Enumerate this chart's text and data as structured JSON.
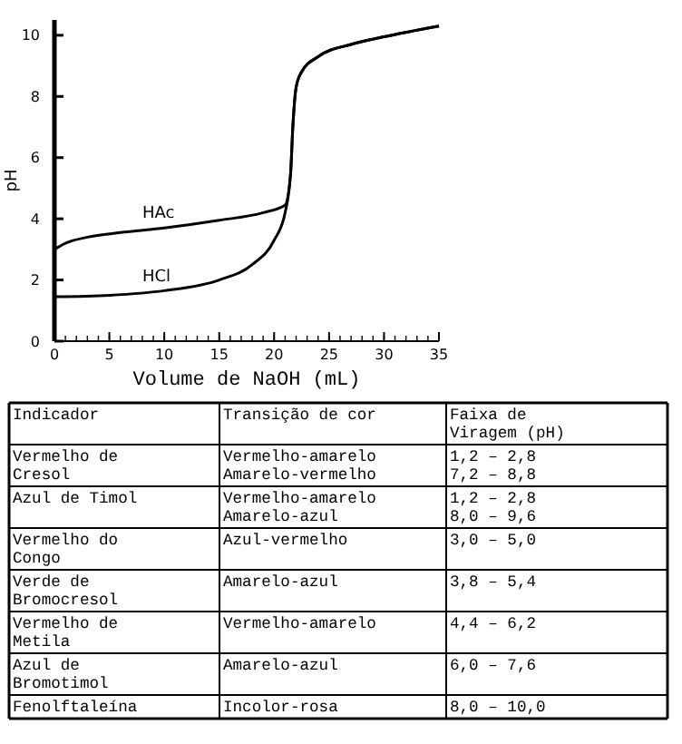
{
  "chart_data": [
    {
      "type": "line",
      "xlabel": "Volume de NaOH (mL)",
      "ylabel": "pH",
      "xlim": [
        0,
        35
      ],
      "ylim": [
        0,
        10.5
      ],
      "xticks": [
        0,
        5,
        10,
        15,
        20,
        25,
        30,
        35
      ],
      "yticks": [
        0,
        2,
        4,
        6,
        8,
        10
      ],
      "marker": "none",
      "line_style": "solid",
      "grid": false,
      "series": [
        {
          "name": "HAc",
          "color": "#000000",
          "x": [
            0,
            1,
            3,
            6,
            10,
            15,
            19,
            21,
            21.5,
            21.7,
            22,
            22.5,
            24,
            27,
            30,
            35
          ],
          "values": [
            3.0,
            3.2,
            3.4,
            3.55,
            3.7,
            3.95,
            4.2,
            4.45,
            5.5,
            7,
            8.3,
            8.8,
            9.3,
            9.7,
            9.95,
            10.3
          ]
        },
        {
          "name": "HCl",
          "color": "#000000",
          "x": [
            0,
            5,
            10,
            15,
            18,
            20,
            21,
            21.5,
            21.7,
            22,
            22.5,
            24,
            27,
            30,
            35
          ],
          "values": [
            1.45,
            1.5,
            1.65,
            2.0,
            2.5,
            3.3,
            4.2,
            5.5,
            7,
            8.3,
            8.8,
            9.3,
            9.7,
            9.95,
            10.3
          ]
        }
      ]
    },
    {
      "type": "other",
      "annotations": [
        "Indicador",
        "Transição de cor",
        "Faixa de\nViragem (pH)",
        "Vermelho de\nCresol",
        "Vermelho-amarelo\nAmarelo-vermelho",
        "1,2 – 2,8\n7,2 – 8,8",
        "Azul de Timol",
        "Vermelho-amarelo\nAmarelo-azul",
        "1,2 – 2,8\n8,0 – 9,6",
        "Vermelho do\nCongo",
        "Azul-vermelho",
        "3,0 – 5,0",
        "Verde de\nBromocresol",
        "Amarelo-azul",
        "3,8 – 5,4",
        "Vermelho de\nMetila",
        "Vermelho-amarelo",
        "4,4 – 6,2",
        "Azul de\nBromotimol",
        "Amarelo-azul",
        "6,0 – 7,6",
        "Fenolftaleína",
        "Incolor-rosa",
        "8,0 – 10,0"
      ]
    }
  ]
}
